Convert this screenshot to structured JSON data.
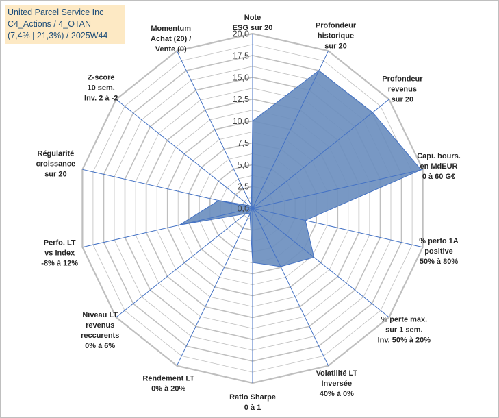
{
  "header": {
    "lines": [
      "United Parcel Service Inc",
      "C4_Actions / 4_OTAN",
      "(7,4% | 21,3%) / 2025W44"
    ]
  },
  "chart_data": {
    "type": "radar",
    "rmax": 20,
    "ticks": [
      "0,0",
      "2,5",
      "5,0",
      "7,5",
      "10,0",
      "12,5",
      "15,0",
      "17,5",
      "20,0"
    ],
    "tick_values": [
      0,
      2.5,
      5,
      7.5,
      10,
      12.5,
      15,
      17.5,
      20
    ],
    "colors": {
      "fill": "#6d8fbf",
      "stroke": "#4472c4",
      "grid": "#bfbfbf",
      "axis": "#4472c4"
    },
    "axes": [
      {
        "label": [
          "Note",
          "ESG sur 20"
        ],
        "value": 10
      },
      {
        "label": [
          "Profondeur",
          "historique",
          "sur 20"
        ],
        "value": 17.5
      },
      {
        "label": [
          "Profondeur",
          "revenus",
          "sur 20"
        ],
        "value": 17.6
      },
      {
        "label": [
          "Capi. bours.",
          "en MdEUR",
          "0 à 60 G€"
        ],
        "value": 19.8
      },
      {
        "label": [
          "% perfo 1A",
          "positive",
          "50% à 80%"
        ],
        "value": 6.2
      },
      {
        "label": [
          "% perte max.",
          "sur 1 sem.",
          "Inv. 50% à 20%"
        ],
        "value": 9.0
      },
      {
        "label": [
          "Volatilité LT",
          "Inversée",
          "40% à 0%"
        ],
        "value": 7.4
      },
      {
        "label": [
          "Ratio Sharpe",
          "0 à 1"
        ],
        "value": 6.2
      },
      {
        "label": [
          "Rendement LT",
          "0% à 20%"
        ],
        "value": 0.7
      },
      {
        "label": [
          "Niveau LT",
          "revenus",
          "reccurents",
          "0% à 6%"
        ],
        "value": 1.0
      },
      {
        "label": [
          "Perfo. LT",
          "vs Index",
          "-8% à 12%"
        ],
        "value": 8.6
      },
      {
        "label": [
          "Régularité",
          "croissance",
          "sur 20"
        ],
        "value": 4.0
      },
      {
        "label": [
          "Z-score",
          "10 sem.",
          "Inv. 2 à -2"
        ],
        "value": 0.5
      },
      {
        "label": [
          "Momentum",
          "Achat (20) /",
          "Vente (0)"
        ],
        "value": 0.3
      }
    ]
  }
}
